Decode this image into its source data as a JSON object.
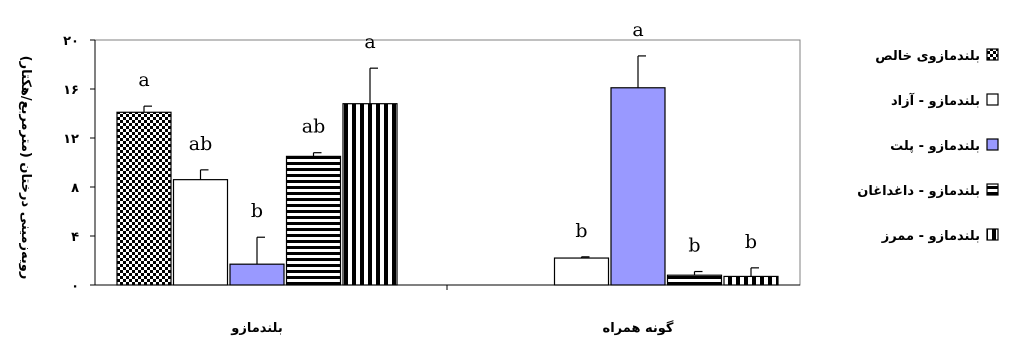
{
  "chart_data": {
    "type": "bar",
    "ylabel": "رویه‌زمینی درختان (مترمربع/هکتار)",
    "ylim": [
      0,
      20
    ],
    "yticks": [
      {
        "value": 0,
        "label": "۰"
      },
      {
        "value": 4,
        "label": "۴"
      },
      {
        "value": 8,
        "label": "۸"
      },
      {
        "value": 12,
        "label": "۱۲"
      },
      {
        "value": 16,
        "label": "۱۶"
      },
      {
        "value": 20,
        "label": "۲۰"
      }
    ],
    "categories": [
      "بلندمازو",
      "گونه همراه"
    ],
    "series": [
      {
        "name": "بلندمازوی خالص",
        "pattern": "checker",
        "fill": "#ffffff",
        "values": [
          14.1,
          null
        ],
        "errors": [
          0.5,
          null
        ],
        "letters": [
          "a",
          ""
        ]
      },
      {
        "name": "بلندمازو - آزاد",
        "pattern": "solid",
        "fill": "#ffffff",
        "values": [
          8.6,
          2.2
        ],
        "errors": [
          0.8,
          0.1
        ],
        "letters": [
          "ab",
          "b"
        ]
      },
      {
        "name": "بلندمازو - پلت",
        "pattern": "solid",
        "fill": "#9999ff",
        "values": [
          1.7,
          16.1
        ],
        "errors": [
          2.2,
          2.6
        ],
        "letters": [
          "b",
          "a"
        ]
      },
      {
        "name": "بلندمازو - داغداغان",
        "pattern": "hstripe",
        "fill": "#ffffff",
        "values": [
          10.5,
          0.8
        ],
        "errors": [
          0.3,
          0.3
        ],
        "letters": [
          "ab",
          "b"
        ]
      },
      {
        "name": "بلندمازو - ممرز",
        "pattern": "vstripe",
        "fill": "#ffffff",
        "values": [
          14.8,
          0.7
        ],
        "errors": [
          2.9,
          0.7
        ],
        "letters": [
          "a",
          "b"
        ]
      }
    ],
    "grid": false,
    "legend_position": "right"
  }
}
